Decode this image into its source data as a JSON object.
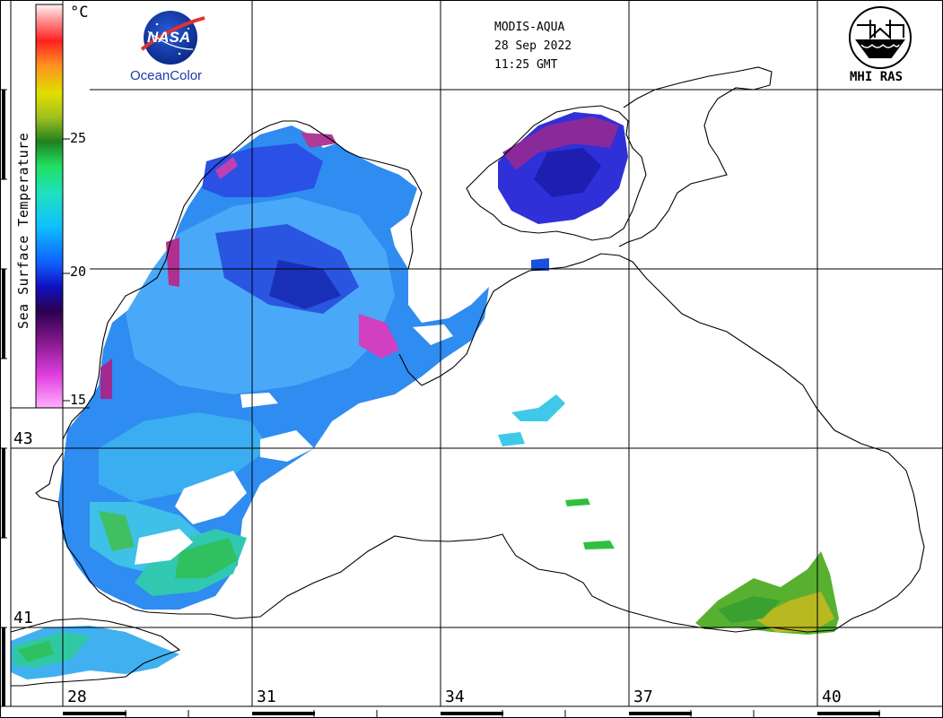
{
  "header": {
    "satellite": "MODIS-AQUA",
    "date": "28 Sep 2022",
    "time": "11:25 GMT"
  },
  "logos": {
    "nasa": {
      "wordmark": "NASA",
      "label": "OceanColor"
    },
    "mhi": {
      "label": "MHI RAS"
    }
  },
  "colorbar": {
    "title": "Sea Surface Temperature",
    "unit": "°C",
    "ticks": [
      "25",
      "20",
      "15"
    ],
    "range": [
      15,
      30
    ],
    "colors": [
      "#ff9cf5",
      "#e040e0",
      "#9b1ca0",
      "#3a0060",
      "#1010c0",
      "#1060ff",
      "#10c0ff",
      "#20e0c0",
      "#20e060",
      "#20a020",
      "#a0c020",
      "#e0e000",
      "#ff9020",
      "#ff2020",
      "#ff9090",
      "#fff0f0"
    ]
  },
  "grid": {
    "longitudes": [
      "28",
      "31",
      "34",
      "37",
      "40"
    ],
    "latitudes": [
      "43",
      "41"
    ]
  }
}
